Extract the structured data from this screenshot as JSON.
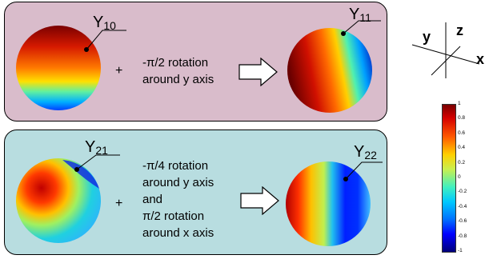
{
  "top": {
    "left_label": {
      "base": "Y",
      "sub": "10"
    },
    "right_label": {
      "base": "Y",
      "sub": "11"
    },
    "plus": "+",
    "operation_lines": [
      "-π/2 rotation",
      "around y axis"
    ]
  },
  "bottom": {
    "left_label": {
      "base": "Y",
      "sub": "21"
    },
    "right_label": {
      "base": "Y",
      "sub": "22"
    },
    "plus": "+",
    "operation_lines": [
      "-π/4 rotation",
      "around y axis",
      "and",
      "π/2 rotation",
      "around  x axis"
    ]
  },
  "axes": {
    "y": "y",
    "z": "z",
    "x": "x"
  },
  "colorbar": {
    "ticks": [
      "1",
      "0.8",
      "0.6",
      "0.4",
      "0.2",
      "0",
      "-0.2",
      "-0.4",
      "-0.6",
      "-0.8",
      "-1"
    ],
    "colormap": "jet",
    "colors": {
      "max": "#7a0000",
      "mid": "#c8f050",
      "min": "#00007a"
    }
  }
}
